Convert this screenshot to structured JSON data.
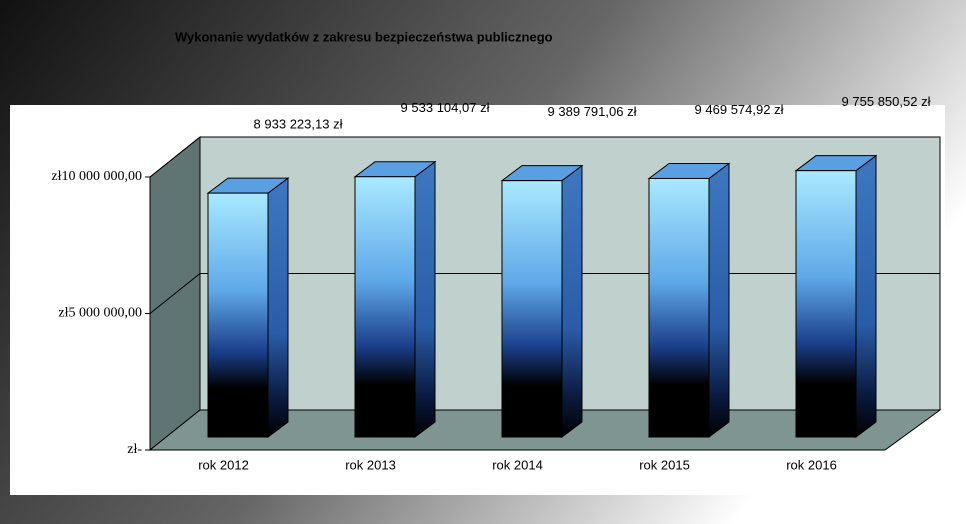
{
  "chart_data": {
    "type": "bar3d",
    "title": "Wykonanie wydatków z zakresu bezpieczeństwa publicznego",
    "categories": [
      "rok 2012",
      "rok 2013",
      "rok 2014",
      "rok 2015",
      "rok 2016"
    ],
    "values": [
      8933223.13,
      9533104.07,
      9389791.06,
      9469574.92,
      9755850.52
    ],
    "value_labels": [
      "8 933 223,13 zł",
      "9 533 104,07 zł",
      "9 389 791,06 zł",
      "9 469 574,92 zł",
      "9 755 850,52 zł"
    ],
    "ylim": [
      0,
      10000000
    ],
    "yticks": [
      {
        "value": 0,
        "label": "zł-"
      },
      {
        "value": 5000000,
        "label": "zł5 000 000,00"
      },
      {
        "value": 10000000,
        "label": "zł10 000 000,00"
      }
    ],
    "grid": true
  }
}
